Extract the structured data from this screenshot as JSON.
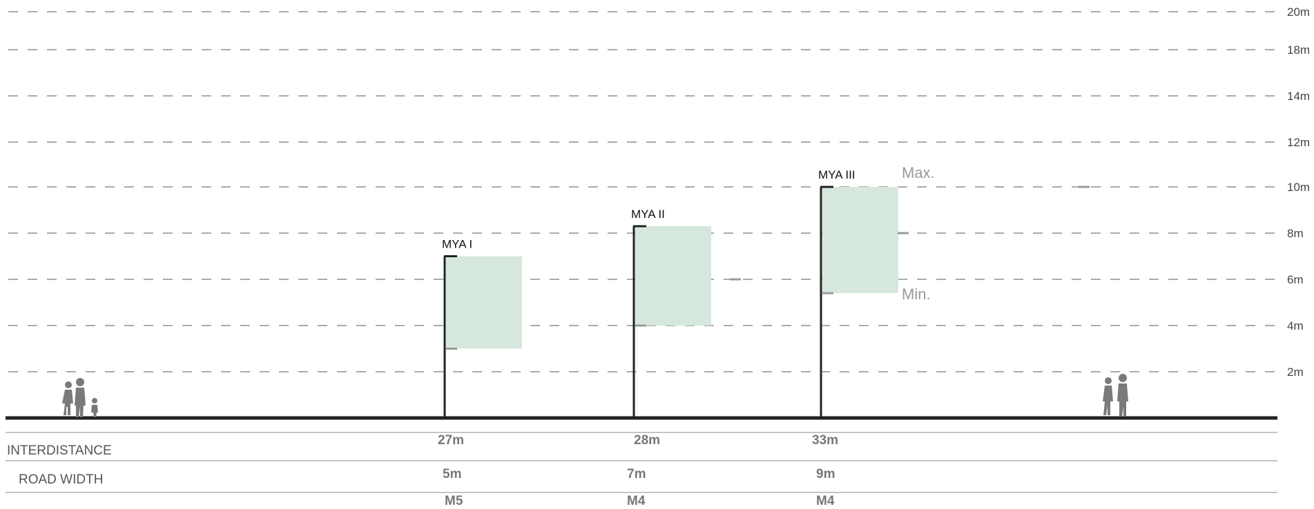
{
  "height_scale": {
    "ticks": [
      {
        "value": 2,
        "label": "2m"
      },
      {
        "value": 4,
        "label": "4m"
      },
      {
        "value": 6,
        "label": "6m"
      },
      {
        "value": 8,
        "label": "8m"
      },
      {
        "value": 10,
        "label": "10m"
      },
      {
        "value": 12,
        "label": "12m"
      },
      {
        "value": 14,
        "label": "14m"
      },
      {
        "value": 18,
        "label": "18m"
      },
      {
        "value": 20,
        "label": "20m"
      }
    ]
  },
  "poles": [
    {
      "label": "MYA I",
      "height_m": 7,
      "min_m": 3,
      "max_m": 7
    },
    {
      "label": "MYA II",
      "height_m": 8.3,
      "min_m": 4,
      "max_m": 8.3
    },
    {
      "label": "MYA III",
      "height_m": 10,
      "min_m": 5.4,
      "max_m": 10
    }
  ],
  "range_labels": {
    "max": "Max.",
    "min": "Min."
  },
  "table": {
    "rows": [
      {
        "label": "INTERDISTANCE",
        "values": [
          "27m",
          "28m",
          "33m"
        ]
      },
      {
        "label": "ROAD WIDTH",
        "values": [
          "5m",
          "7m",
          "9m"
        ]
      },
      {
        "label": "",
        "values": [
          "M5",
          "M4",
          "M4"
        ]
      }
    ]
  },
  "colors": {
    "ground": "#222222",
    "grid": "#555555",
    "range_fill": "#d6e8dd",
    "marker": "#9a9a9a",
    "figure": "#7a7a7a"
  }
}
